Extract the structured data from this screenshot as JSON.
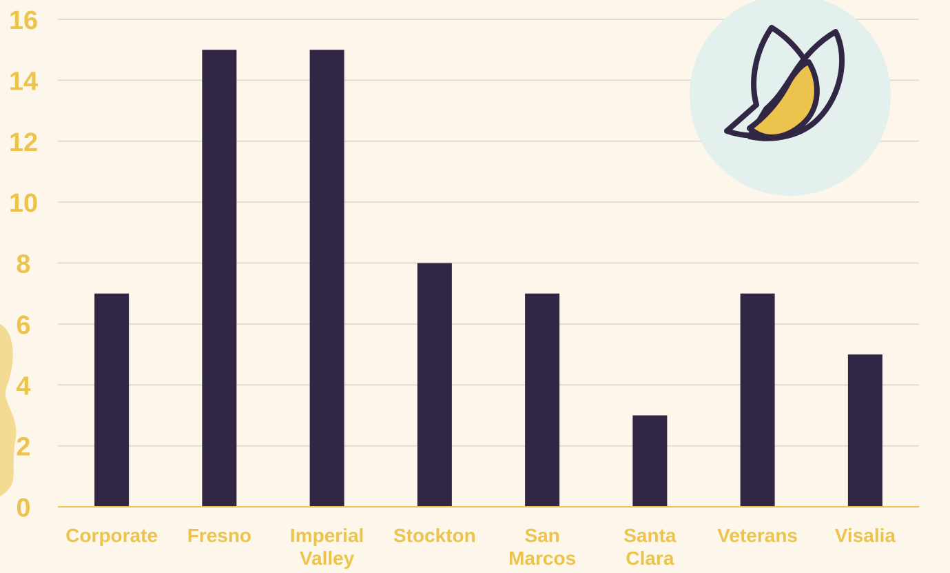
{
  "colors": {
    "background": "#fdf6ea",
    "bar": "#322645",
    "label": "#ecc44d",
    "grid": "#e2ddd3",
    "axis": "#ecc44d",
    "logo_circle": "#e4f0ee",
    "logo_fill": "#ecc44d",
    "logo_outline": "#322645"
  },
  "logo": {
    "icon": "butterfly-icon"
  },
  "chart_data": {
    "type": "bar",
    "categories": [
      "Corporate",
      "Fresno",
      "Imperial Valley",
      "Stockton",
      "San Marcos",
      "Santa Clara",
      "Veterans",
      "Visalia"
    ],
    "category_lines": [
      [
        "Corporate"
      ],
      [
        "Fresno"
      ],
      [
        "Imperial",
        "Valley"
      ],
      [
        "Stockton"
      ],
      [
        "San",
        "Marcos"
      ],
      [
        "Santa",
        "Clara"
      ],
      [
        "Veterans"
      ],
      [
        "Visalia"
      ]
    ],
    "values": [
      7,
      15,
      15,
      8,
      7,
      3,
      7,
      5
    ],
    "title": "",
    "xlabel": "",
    "ylabel": "",
    "ylim": [
      0,
      16
    ],
    "yticks": [
      0,
      2,
      4,
      6,
      8,
      10,
      12,
      14,
      16
    ],
    "grid": true,
    "legend": "none"
  }
}
